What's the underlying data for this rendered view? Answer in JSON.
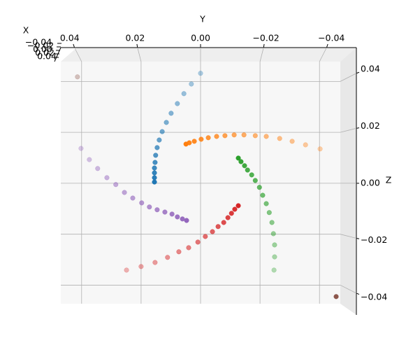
{
  "chart_data": {
    "type": "scatter3d",
    "xlabel": "Y",
    "ylabel": "Z",
    "zlabel": "X",
    "xlim": [
      0.047,
      -0.047
    ],
    "ylim": [
      -0.0473,
      0.0478
    ],
    "xticks": [
      0.04,
      0.02,
      {
        "value": 0.0,
        "label": "0.00"
      },
      {
        "value": -0.02,
        "label": "−0.02"
      },
      {
        "value": -0.04,
        "label": "−0.04"
      }
    ],
    "yticks": [
      0.04,
      0.02,
      {
        "value": 0.0,
        "label": "0.00"
      },
      {
        "value": -0.02,
        "label": "−0.02"
      },
      {
        "value": -0.04,
        "label": "−0.04"
      }
    ],
    "zticks": [
      {
        "value": -0.04,
        "label": "−0.04"
      },
      {
        "value": -0.02,
        "label": "−0.02"
      },
      {
        "value": 0.0,
        "label": "0.00"
      },
      {
        "value": 0.02,
        "label": "0.02"
      },
      {
        "value": 0.04,
        "label": "0.04"
      }
    ],
    "grid": true,
    "series": [
      {
        "color": "#1f77b4",
        "x": [
          0.0155,
          0.0155,
          0.0155,
          0.0155,
          0.0153,
          0.0151,
          0.0146,
          0.0139,
          0.0129,
          0.0115,
          0.0099,
          0.0078,
          0.0056,
          0.0031,
          0.0
        ],
        "values": [
          0.0005,
          0.0022,
          0.0041,
          0.006,
          0.0082,
          0.011,
          0.014,
          0.017,
          0.0203,
          0.0239,
          0.0275,
          0.0313,
          0.0352,
          0.039,
          0.0432
        ]
      },
      {
        "color": "#ff7f0e",
        "x": [
          0.0049,
          0.0038,
          0.0021,
          -0.0002,
          -0.0026,
          -0.0054,
          -0.0082,
          -0.0113,
          -0.0146,
          -0.0184,
          -0.0221,
          -0.0266,
          -0.0308,
          -0.0353,
          -0.0402
        ],
        "values": [
          0.0154,
          0.0159,
          0.0165,
          0.0173,
          0.0179,
          0.0184,
          0.0187,
          0.019,
          0.019,
          0.0187,
          0.0184,
          0.0176,
          0.0165,
          0.0151,
          0.0135
        ]
      },
      {
        "color": "#2ca02c",
        "x": [
          -0.0127,
          -0.0136,
          -0.0148,
          -0.0158,
          -0.0172,
          -0.0184,
          -0.0198,
          -0.0209,
          -0.0221,
          -0.0231,
          -0.024,
          -0.0245,
          -0.0249,
          -0.0249,
          -0.0247
        ],
        "values": [
          0.0099,
          0.0085,
          0.0069,
          0.0052,
          0.0033,
          0.0011,
          -0.0016,
          -0.0047,
          -0.008,
          -0.0115,
          -0.0154,
          -0.0198,
          -0.0242,
          -0.0289,
          -0.0341
        ]
      },
      {
        "color": "#d62728",
        "x": [
          -0.0127,
          -0.0115,
          -0.0104,
          -0.0092,
          -0.0078,
          -0.0059,
          -0.004,
          -0.0016,
          0.0009,
          0.004,
          0.0073,
          0.0111,
          0.0153,
          0.02,
          0.0249
        ],
        "values": [
          -0.0088,
          -0.0102,
          -0.0118,
          -0.0135,
          -0.0154,
          -0.017,
          -0.019,
          -0.0209,
          -0.0231,
          -0.0253,
          -0.0269,
          -0.0291,
          -0.0311,
          -0.0327,
          -0.0341
        ]
      },
      {
        "color": "#9467bd",
        "x": [
          0.0047,
          0.0061,
          0.0078,
          0.0096,
          0.012,
          0.0146,
          0.0172,
          0.0198,
          0.0228,
          0.0256,
          0.0285,
          0.0315,
          0.0346,
          0.0374,
          0.0402
        ],
        "values": [
          -0.0146,
          -0.014,
          -0.0132,
          -0.0121,
          -0.0113,
          -0.0104,
          -0.0093,
          -0.0077,
          -0.0058,
          -0.0036,
          -0.0005,
          0.0022,
          0.0058,
          0.0093,
          0.0137
        ]
      },
      {
        "color": "#8c564b",
        "x": [
          -0.0456,
          0.0414
        ],
        "values": [
          -0.0445,
          0.0418
        ]
      }
    ]
  }
}
